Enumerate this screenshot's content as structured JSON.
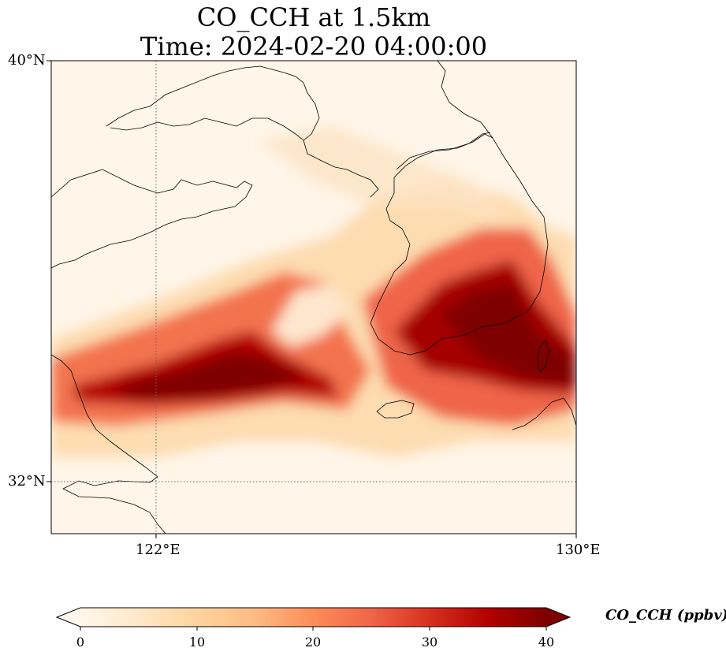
{
  "title": {
    "line1": "CO_CCH at 1.5km",
    "line2": "Time: 2024-02-20 04:00:00"
  },
  "map": {
    "lat_range": [
      31,
      40
    ],
    "lon_range": [
      120,
      130
    ],
    "lat_ticks": [
      {
        "value": 40,
        "label": "40°N"
      },
      {
        "value": 32,
        "label": "32°N"
      }
    ],
    "lon_ticks": [
      {
        "value": 122,
        "label": "122°E"
      },
      {
        "value": 130,
        "label": "130°E"
      }
    ],
    "colormap": "OrRd",
    "gridlines": "dotted, at 32°N and 122°E"
  },
  "colorbar": {
    "label": "CO_CCH (ppbv)",
    "min": 0,
    "max": 40,
    "extend": "both",
    "ticks": [
      {
        "value": 0,
        "label": "0"
      },
      {
        "value": 10,
        "label": "10"
      },
      {
        "value": 20,
        "label": "20"
      },
      {
        "value": 30,
        "label": "30"
      },
      {
        "value": 40,
        "label": "40"
      }
    ],
    "colors": [
      "#fff7ec",
      "#fee8c8",
      "#fdd49e",
      "#fdbb84",
      "#fc8d59",
      "#ef6548",
      "#d7301f",
      "#b30000",
      "#7f0000"
    ]
  }
}
